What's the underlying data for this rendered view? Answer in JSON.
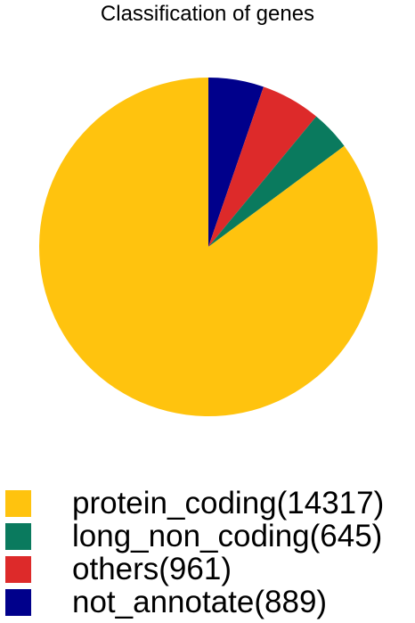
{
  "chart_data": {
    "type": "pie",
    "title": "Classification of genes",
    "slices": [
      {
        "label": "not_annotate",
        "value": 889,
        "color": "#00008B",
        "legend": "not_annotate(889)"
      },
      {
        "label": "others",
        "value": 961,
        "color": "#DD2A2A",
        "legend": "others(961)"
      },
      {
        "label": "long_non_coding",
        "value": 645,
        "color": "#0A7A5E",
        "legend": "long_non_coding(645)"
      },
      {
        "label": "protein_coding",
        "value": 14317,
        "color": "#FFC30E",
        "legend": "protein_coding(14317)"
      }
    ],
    "legend_order": [
      "protein_coding",
      "long_non_coding",
      "others",
      "not_annotate"
    ],
    "slice_direction": "clockwise from top",
    "legend_position": "bottom"
  }
}
